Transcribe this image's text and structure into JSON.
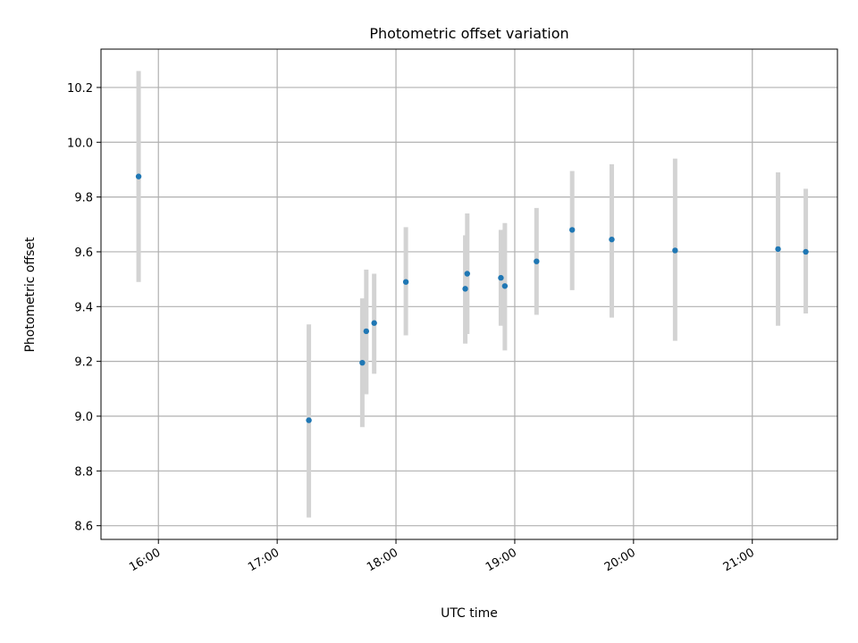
{
  "chart_data": {
    "type": "scatter",
    "title": "Photometric offset variation",
    "xlabel": "UTC time",
    "ylabel": "Photometric offset",
    "x_ticks": [
      "16:00",
      "17:00",
      "18:00",
      "19:00",
      "20:00",
      "21:00"
    ],
    "y_ticks": [
      "8.6",
      "8.8",
      "9.0",
      "9.2",
      "9.4",
      "9.6",
      "9.8",
      "10.0",
      "10.2"
    ],
    "xlim": [
      "15:31",
      "21:43"
    ],
    "ylim": [
      8.55,
      10.34
    ],
    "grid": true,
    "point_color": "#1f77b4",
    "errorbar_color": "#d3d3d3",
    "points": [
      {
        "x": "15:50",
        "y": 9.875,
        "y_low": 9.49,
        "y_high": 10.26
      },
      {
        "x": "17:16",
        "y": 8.985,
        "y_low": 8.63,
        "y_high": 9.335
      },
      {
        "x": "17:43",
        "y": 9.195,
        "y_low": 8.96,
        "y_high": 9.43
      },
      {
        "x": "17:45",
        "y": 9.31,
        "y_low": 9.08,
        "y_high": 9.535
      },
      {
        "x": "17:49",
        "y": 9.34,
        "y_low": 9.155,
        "y_high": 9.52
      },
      {
        "x": "18:05",
        "y": 9.49,
        "y_low": 9.295,
        "y_high": 9.69
      },
      {
        "x": "18:35",
        "y": 9.465,
        "y_low": 9.265,
        "y_high": 9.66
      },
      {
        "x": "18:36",
        "y": 9.52,
        "y_low": 9.3,
        "y_high": 9.74
      },
      {
        "x": "18:53",
        "y": 9.505,
        "y_low": 9.33,
        "y_high": 9.68
      },
      {
        "x": "18:55",
        "y": 9.475,
        "y_low": 9.24,
        "y_high": 9.705
      },
      {
        "x": "19:11",
        "y": 9.565,
        "y_low": 9.37,
        "y_high": 9.76
      },
      {
        "x": "19:29",
        "y": 9.68,
        "y_low": 9.46,
        "y_high": 9.895
      },
      {
        "x": "19:49",
        "y": 9.645,
        "y_low": 9.36,
        "y_high": 9.92
      },
      {
        "x": "20:21",
        "y": 9.605,
        "y_low": 9.275,
        "y_high": 9.94
      },
      {
        "x": "21:13",
        "y": 9.61,
        "y_low": 9.33,
        "y_high": 9.89
      },
      {
        "x": "21:27",
        "y": 9.6,
        "y_low": 9.375,
        "y_high": 9.83
      }
    ]
  }
}
